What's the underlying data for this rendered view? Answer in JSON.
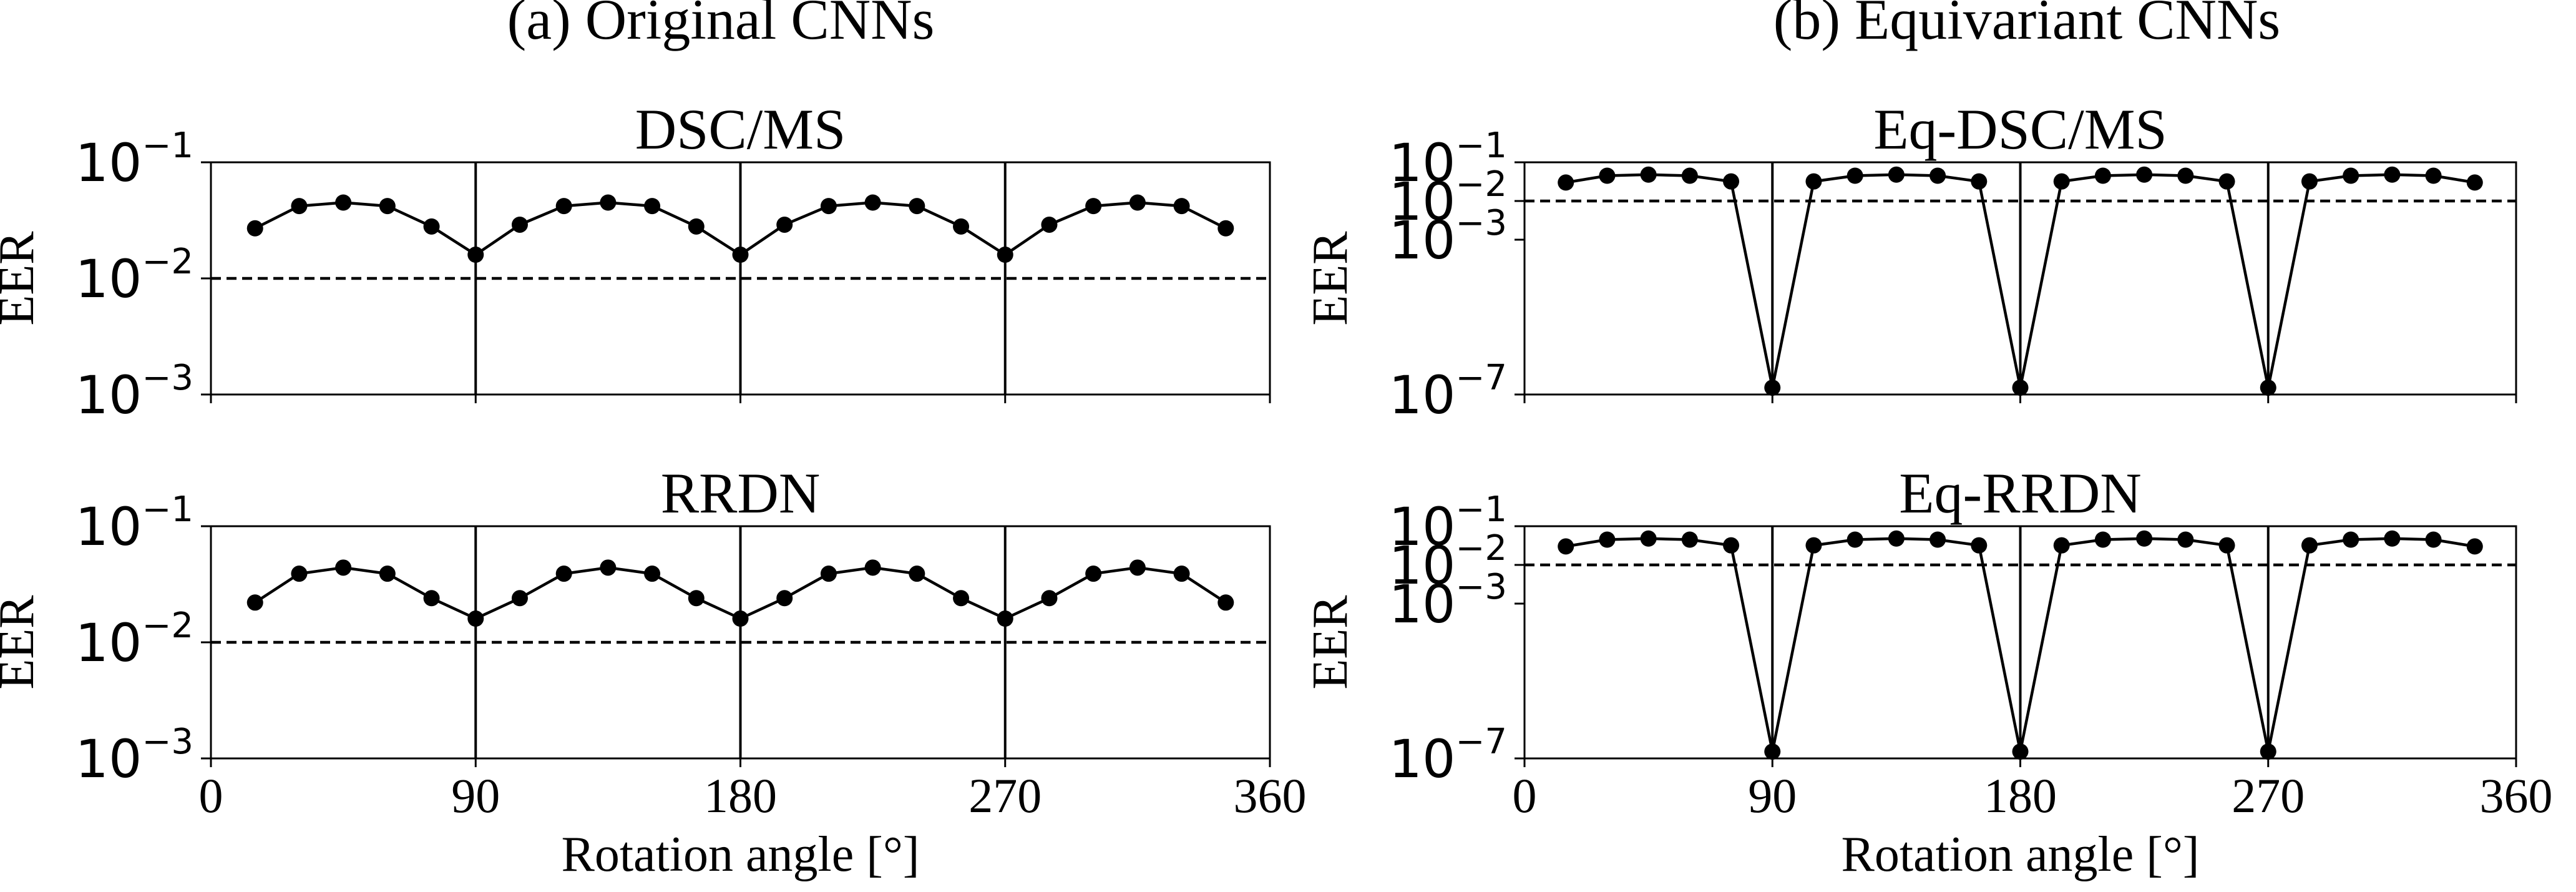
{
  "figure": {
    "column_titles": [
      "(a) Original CNNs",
      "(b) Equivariant CNNs"
    ]
  },
  "chart_data": [
    {
      "type": "line",
      "title": "DSC/MS",
      "xlabel": "",
      "ylabel": "EER",
      "yscale": "log",
      "ylim": [
        0.001,
        0.1
      ],
      "yticks": [
        0.1,
        0.01,
        0.001
      ],
      "ytick_labels": [
        [
          "10",
          "−1"
        ],
        [
          "10",
          "−2"
        ],
        [
          "10",
          "−3"
        ]
      ],
      "xlim": [
        0,
        360
      ],
      "xticks": [
        0,
        90,
        180,
        270,
        360
      ],
      "xtick_labels": [],
      "vlines": [
        90,
        180,
        270
      ],
      "hline": 0.01,
      "series": [
        {
          "x": [
            15,
            30,
            45,
            60,
            75,
            90,
            105,
            120,
            135,
            150,
            165,
            180,
            195,
            210,
            225,
            240,
            255,
            270,
            285,
            300,
            315,
            330,
            345
          ],
          "y": [
            0.027,
            0.042,
            0.045,
            0.042,
            0.028,
            0.016,
            0.029,
            0.042,
            0.045,
            0.042,
            0.028,
            0.016,
            0.029,
            0.042,
            0.045,
            0.042,
            0.028,
            0.016,
            0.029,
            0.042,
            0.045,
            0.042,
            0.027
          ]
        }
      ]
    },
    {
      "type": "line",
      "title": "Eq-DSC/MS",
      "xlabel": "",
      "ylabel": "EER",
      "yscale": "log",
      "ylim": [
        1e-07,
        0.1
      ],
      "yticks": [
        0.1,
        0.01,
        0.001,
        1e-07
      ],
      "ytick_labels": [
        [
          "10",
          "−1"
        ],
        [
          "10",
          "−2"
        ],
        [
          "10",
          "−3"
        ],
        [
          "10",
          "−7"
        ]
      ],
      "xlim": [
        0,
        360
      ],
      "xticks": [
        0,
        90,
        180,
        270,
        360
      ],
      "xtick_labels": [],
      "vlines": [
        90,
        180,
        270
      ],
      "hline": 0.01,
      "series": [
        {
          "x": [
            15,
            30,
            45,
            60,
            75,
            90,
            105,
            120,
            135,
            150,
            165,
            180,
            195,
            210,
            225,
            240,
            255,
            270,
            285,
            300,
            315,
            330,
            345
          ],
          "y": [
            0.03,
            0.045,
            0.048,
            0.045,
            0.032,
            1.5e-07,
            0.032,
            0.045,
            0.048,
            0.045,
            0.032,
            1.5e-07,
            0.032,
            0.045,
            0.048,
            0.045,
            0.032,
            1.5e-07,
            0.032,
            0.045,
            0.048,
            0.045,
            0.03
          ]
        }
      ]
    },
    {
      "type": "line",
      "title": "RRDN",
      "xlabel": "Rotation angle [°]",
      "ylabel": "EER",
      "yscale": "log",
      "ylim": [
        0.001,
        0.1
      ],
      "yticks": [
        0.1,
        0.01,
        0.001
      ],
      "ytick_labels": [
        [
          "10",
          "−1"
        ],
        [
          "10",
          "−2"
        ],
        [
          "10",
          "−3"
        ]
      ],
      "xlim": [
        0,
        360
      ],
      "xticks": [
        0,
        90,
        180,
        270,
        360
      ],
      "xtick_labels": [
        "0",
        "90",
        "180",
        "270",
        "360"
      ],
      "vlines": [
        90,
        180,
        270
      ],
      "hline": 0.01,
      "series": [
        {
          "x": [
            15,
            30,
            45,
            60,
            75,
            90,
            105,
            120,
            135,
            150,
            165,
            180,
            195,
            210,
            225,
            240,
            255,
            270,
            285,
            300,
            315,
            330,
            345
          ],
          "y": [
            0.022,
            0.039,
            0.044,
            0.039,
            0.024,
            0.016,
            0.024,
            0.039,
            0.044,
            0.039,
            0.024,
            0.016,
            0.024,
            0.039,
            0.044,
            0.039,
            0.024,
            0.016,
            0.024,
            0.039,
            0.044,
            0.039,
            0.022
          ]
        }
      ]
    },
    {
      "type": "line",
      "title": "Eq-RRDN",
      "xlabel": "Rotation angle [°]",
      "ylabel": "EER",
      "yscale": "log",
      "ylim": [
        1e-07,
        0.1
      ],
      "yticks": [
        0.1,
        0.01,
        0.001,
        1e-07
      ],
      "ytick_labels": [
        [
          "10",
          "−1"
        ],
        [
          "10",
          "−2"
        ],
        [
          "10",
          "−3"
        ],
        [
          "10",
          "−7"
        ]
      ],
      "xlim": [
        0,
        360
      ],
      "xticks": [
        0,
        90,
        180,
        270,
        360
      ],
      "xtick_labels": [
        "0",
        "90",
        "180",
        "270",
        "360"
      ],
      "vlines": [
        90,
        180,
        270
      ],
      "hline": 0.01,
      "series": [
        {
          "x": [
            15,
            30,
            45,
            60,
            75,
            90,
            105,
            120,
            135,
            150,
            165,
            180,
            195,
            210,
            225,
            240,
            255,
            270,
            285,
            300,
            315,
            330,
            345
          ],
          "y": [
            0.03,
            0.045,
            0.048,
            0.045,
            0.032,
            1.5e-07,
            0.032,
            0.045,
            0.048,
            0.045,
            0.032,
            1.5e-07,
            0.032,
            0.045,
            0.048,
            0.045,
            0.032,
            1.5e-07,
            0.032,
            0.045,
            0.048,
            0.045,
            0.03
          ]
        }
      ]
    }
  ]
}
